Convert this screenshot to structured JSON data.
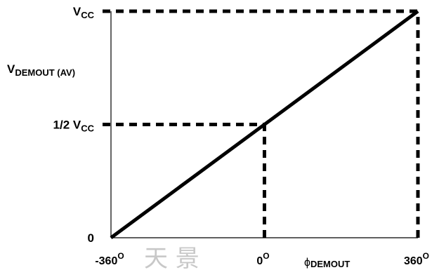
{
  "chart_data": {
    "type": "line",
    "x": [
      -360,
      360
    ],
    "y": [
      0,
      1
    ],
    "xlim": [
      -360,
      360
    ],
    "ylim": [
      0,
      1
    ],
    "y_unit_note": "",
    "x_ticks": [
      {
        "value": -360,
        "main": "-360",
        "sup": "O"
      },
      {
        "value": 0,
        "main": "0",
        "sup": "O"
      },
      {
        "value": 360,
        "main": "360",
        "sup": "O"
      }
    ],
    "y_ticks": [
      {
        "value": 0,
        "main": "0",
        "sub": ""
      },
      {
        "value": 0.5,
        "main": "1/2 V",
        "sub": "CC"
      },
      {
        "value": 1,
        "main": "V",
        "sub": "CC"
      }
    ],
    "ylabel": {
      "main": "V",
      "sub": "DEMOUT (AV)"
    },
    "xlabel": {
      "main": "ϕ",
      "sub": "DEMOUT"
    },
    "guides": [
      {
        "from": [
          -360,
          1
        ],
        "to": [
          360,
          1
        ]
      },
      {
        "from": [
          360,
          0
        ],
        "to": [
          360,
          1
        ]
      },
      {
        "from": [
          -360,
          0.5
        ],
        "to": [
          0,
          0.5
        ]
      },
      {
        "from": [
          0,
          0
        ],
        "to": [
          0,
          0.5
        ]
      }
    ],
    "grid": false,
    "colors": {
      "line": "#000000",
      "axis": "#000000",
      "background": "#ffffff"
    }
  },
  "watermark": {
    "text": "天 景"
  }
}
